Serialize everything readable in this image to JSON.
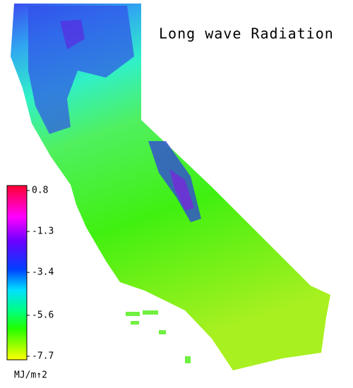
{
  "title": "Long wave Radiation",
  "colorbar": {
    "label": "MJ/m↑2",
    "clim": [
      -7.7,
      0.8
    ],
    "ticks": [
      0.8,
      -1.3,
      -3.4,
      -5.6,
      -7.7
    ]
  }
}
